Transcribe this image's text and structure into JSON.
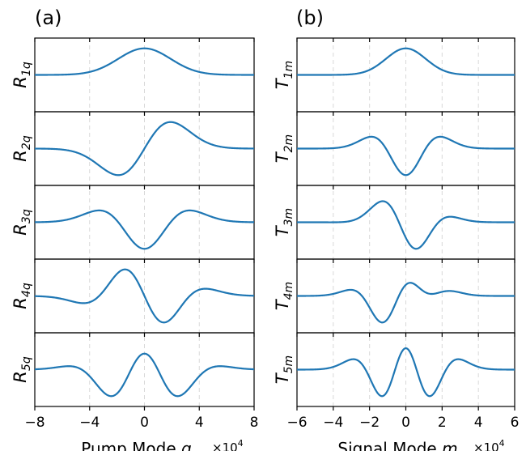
{
  "chart_data": [
    {
      "type": "line",
      "panel_label": "(a)",
      "xlabel_prefix": "Pump Mode ",
      "xlabel_var": "q",
      "x_multiplier_text": "×10",
      "x_multiplier_exp": "4",
      "xlim": [
        -8,
        8
      ],
      "xticks": [
        -8,
        -4,
        0,
        4,
        8
      ],
      "xtick_labels": [
        "−8",
        "−4",
        "0",
        "4",
        "8"
      ],
      "grid": "vertical dashed",
      "color": "#1f77b4",
      "subplots": [
        {
          "ylabel_main": "R",
          "ylabel_sub": "1q",
          "amplitude": 1.0,
          "shape": [
            1
          ]
        },
        {
          "ylabel_main": "R",
          "ylabel_sub": "2q",
          "amplitude": 1.0,
          "shape": [
            0,
            1
          ]
        },
        {
          "ylabel_main": "R",
          "ylabel_sub": "3q",
          "amplitude": 1.0,
          "shape": [
            -0.5,
            0,
            1
          ]
        },
        {
          "ylabel_main": "R",
          "ylabel_sub": "4q",
          "amplitude": 1.0,
          "shape": [
            0,
            -1.5,
            0,
            1
          ]
        },
        {
          "ylabel_main": "R",
          "ylabel_sub": "5q",
          "amplitude": 1.0,
          "shape": [
            0.375,
            0,
            -3,
            0,
            1
          ]
        }
      ],
      "envelope_width": 2.7
    },
    {
      "type": "line",
      "panel_label": "(b)",
      "xlabel_prefix": "Signal Mode ",
      "xlabel_var": "m",
      "x_multiplier_text": "×10",
      "x_multiplier_exp": "4",
      "xlim": [
        -6,
        6
      ],
      "xticks": [
        -6,
        -4,
        -2,
        0,
        2,
        4,
        6
      ],
      "xtick_labels": [
        "−6",
        "−4",
        "−2",
        "0",
        "2",
        "4",
        "6"
      ],
      "grid": "vertical dashed",
      "color": "#1f77b4",
      "subplots": [
        {
          "ylabel_main": "T",
          "ylabel_sub": "1m",
          "amplitude": 1.0,
          "shape": [
            1
          ]
        },
        {
          "ylabel_main": "T",
          "ylabel_sub": "2m",
          "amplitude": 1.0,
          "shape": [
            -0.5,
            0,
            1
          ]
        },
        {
          "ylabel_main": "T",
          "ylabel_sub": "3m",
          "amplitude": 1.0,
          "shape": [
            -0.25,
            -0.9,
            0.55,
            0.35
          ]
        },
        {
          "ylabel_main": "T",
          "ylabel_sub": "4m",
          "amplitude": 1.0,
          "shape": [
            0.15,
            0.35,
            -1.0,
            0.25,
            0.45,
            -0.12
          ]
        },
        {
          "ylabel_main": "T",
          "ylabel_sub": "5m",
          "amplitude": 1.0,
          "shape": [
            0.3,
            0,
            -2.2,
            0,
            1
          ]
        }
      ],
      "envelope_width": 1.55
    }
  ]
}
